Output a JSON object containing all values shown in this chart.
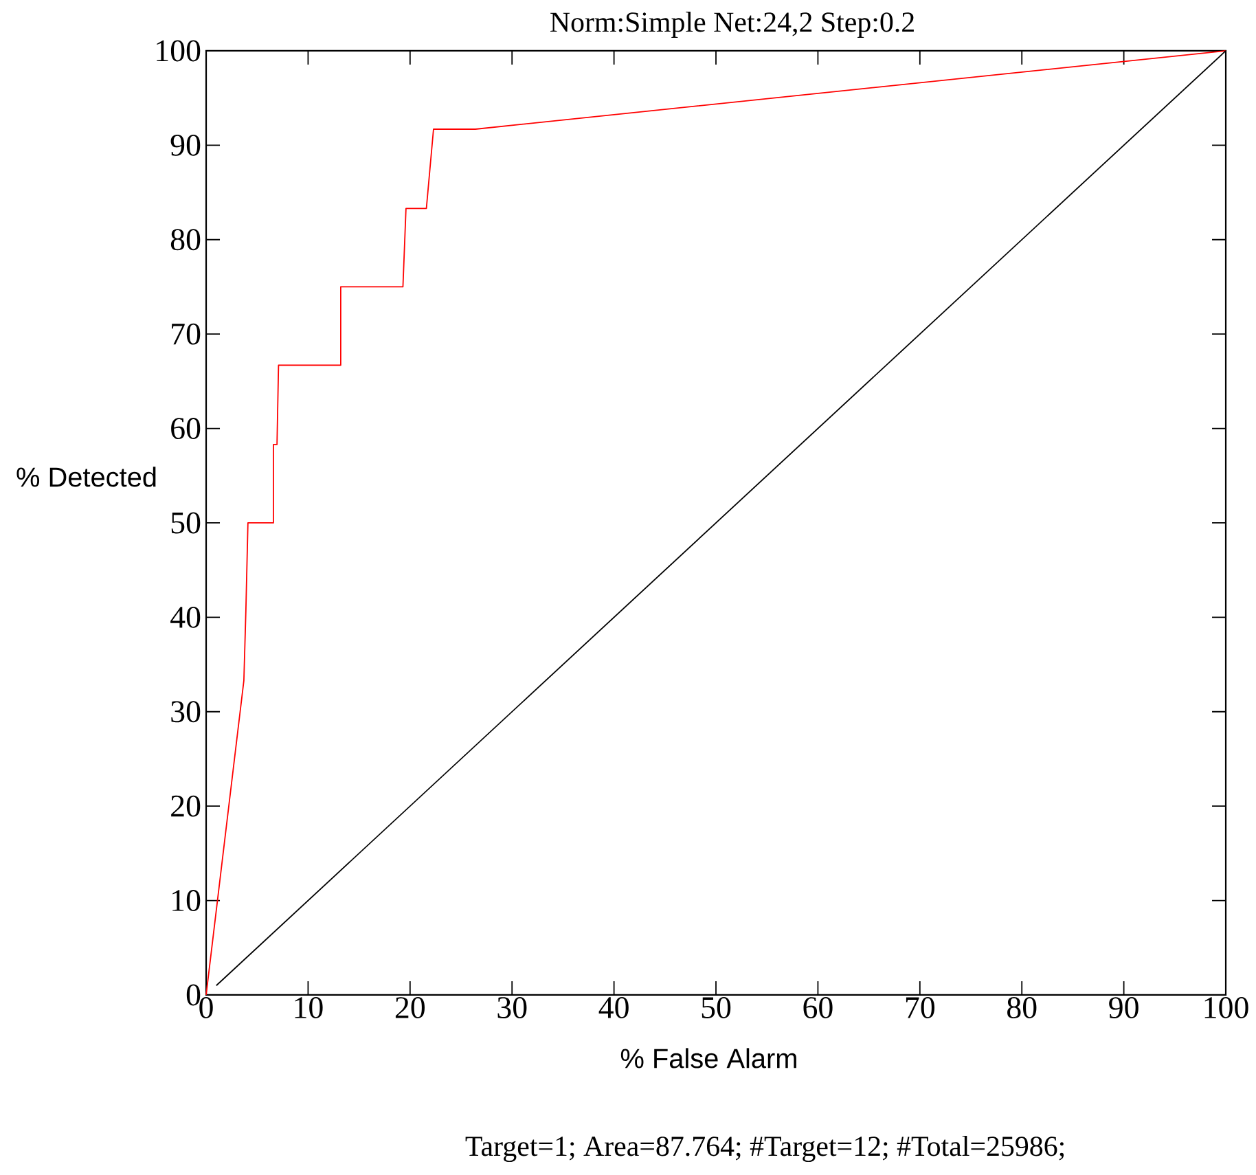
{
  "chart_data": {
    "type": "line",
    "title": "Norm:Simple Net:24,2 Step:0.2",
    "xlabel": "% False Alarm",
    "ylabel": "% Detected",
    "annotations": [
      "Target=1; Area=87.764; #Target=12; #Total=25986;"
    ],
    "xlim": [
      0,
      100
    ],
    "ylim": [
      0,
      100
    ],
    "xticks": [
      0,
      10,
      20,
      30,
      40,
      50,
      60,
      70,
      80,
      90,
      100
    ],
    "yticks": [
      0,
      10,
      20,
      30,
      40,
      50,
      60,
      70,
      80,
      90,
      100
    ],
    "series": [
      {
        "color": "#ff0000",
        "x": [
          0,
          3.7,
          3.9,
          4.1,
          6.6,
          6.6,
          6.95,
          7.1,
          13.2,
          13.2,
          19.3,
          19.6,
          21.6,
          22.3,
          26.4,
          100
        ],
        "values": [
          0,
          33.3,
          40.8,
          50,
          50,
          58.3,
          58.3,
          66.7,
          66.7,
          75,
          75,
          83.3,
          83.3,
          91.7,
          91.7,
          100
        ]
      },
      {
        "color": "#000000",
        "x": [
          1,
          100
        ],
        "values": [
          1,
          100
        ]
      }
    ]
  }
}
